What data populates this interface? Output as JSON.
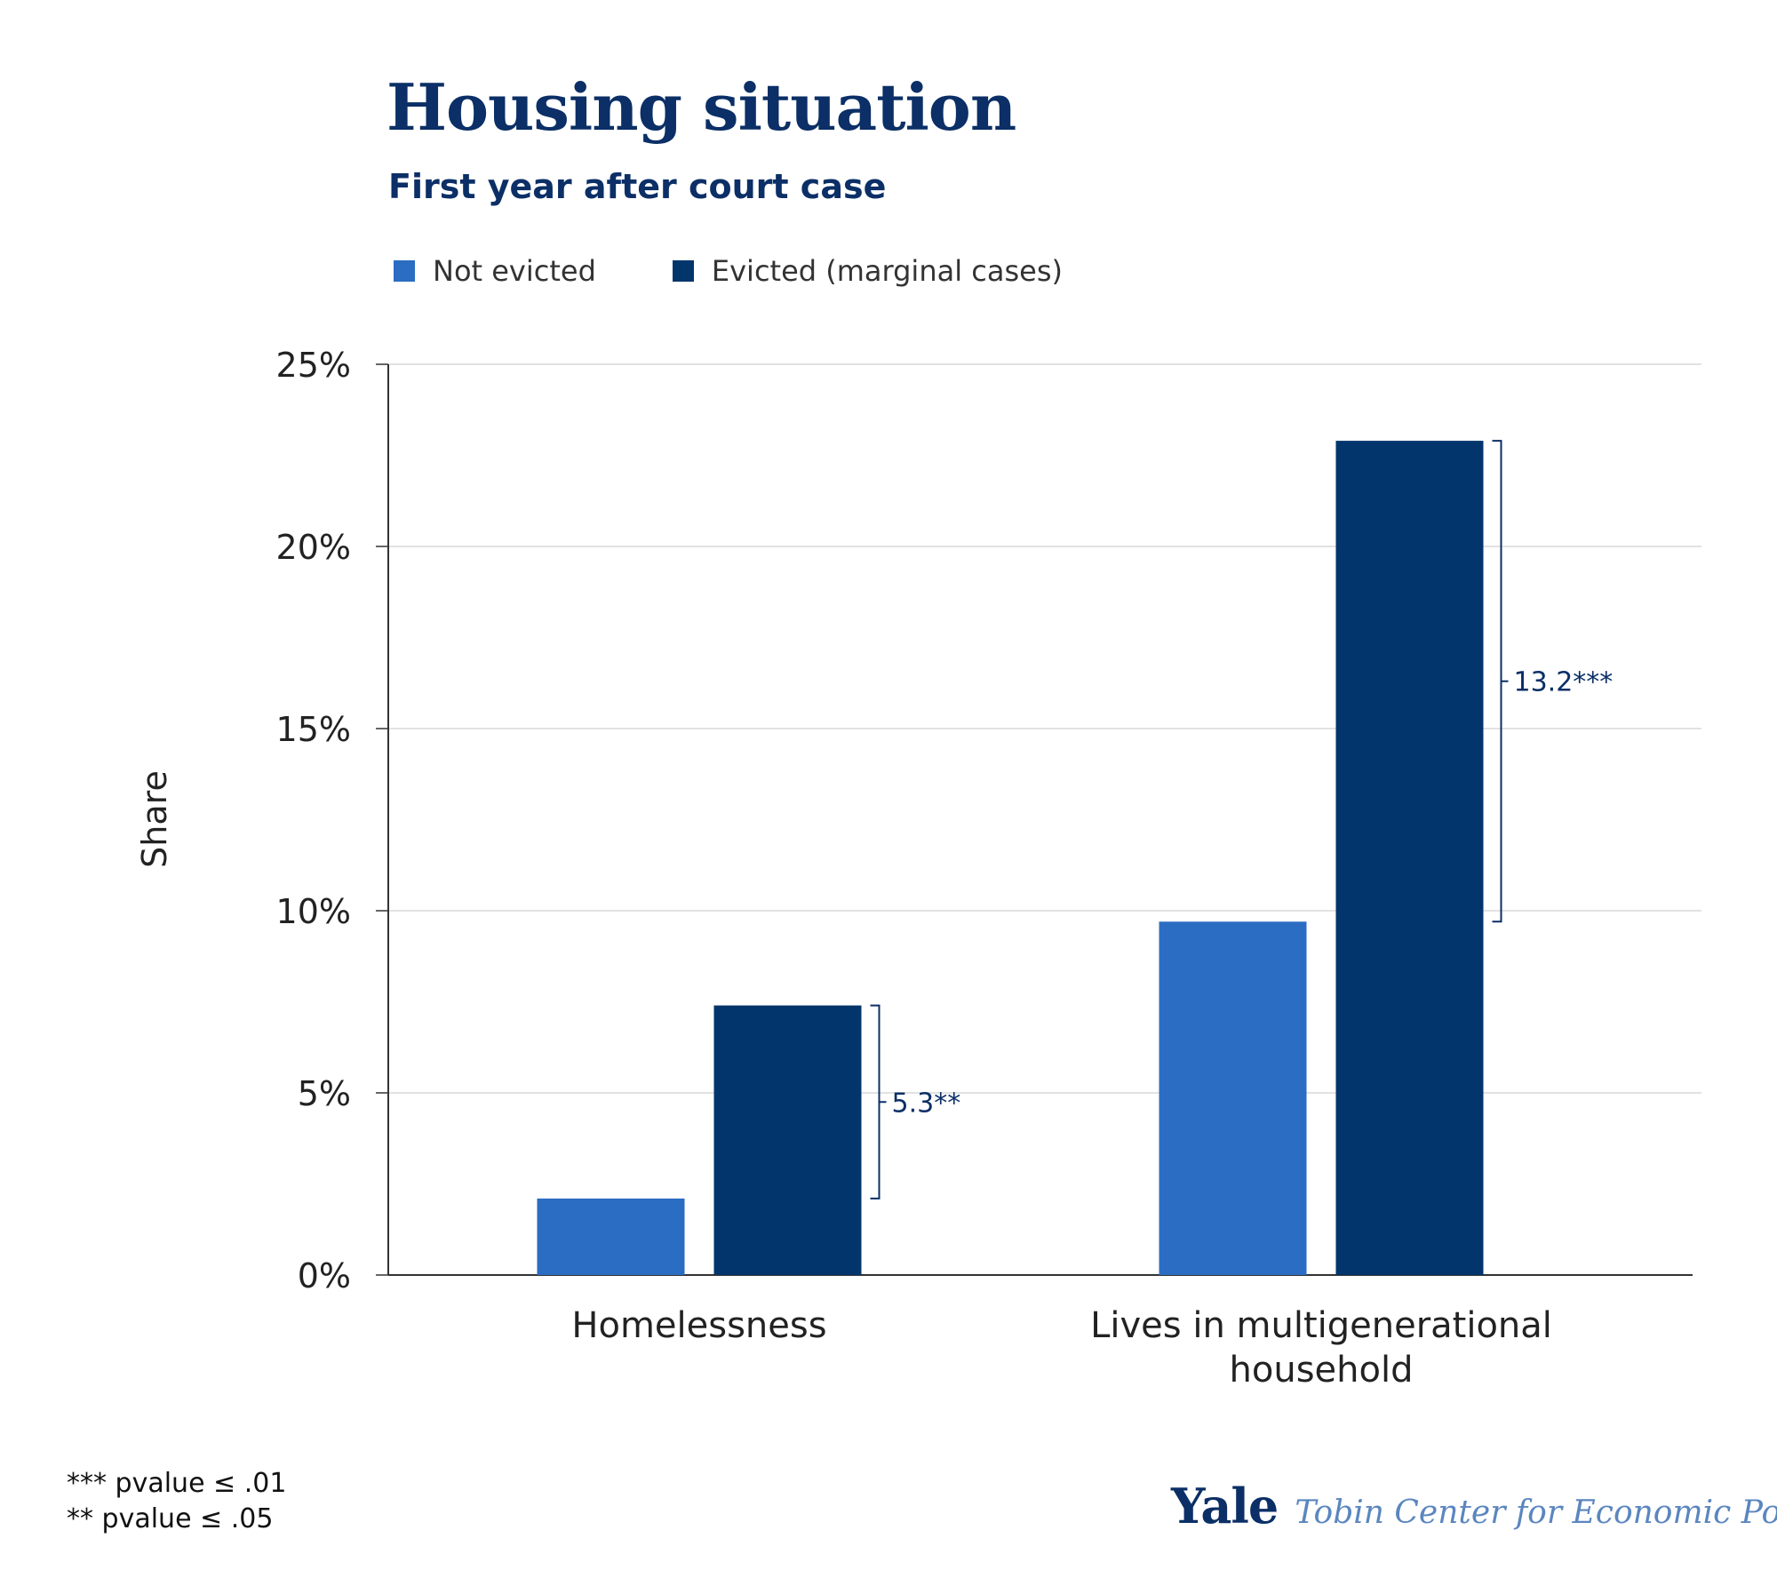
{
  "chart_data": {
    "type": "bar",
    "title": "Housing situation",
    "subtitle": "First year after court case",
    "ylabel": "Share",
    "xlabel": "",
    "ylim": [
      0,
      25
    ],
    "yticks": [
      0,
      5,
      10,
      15,
      20,
      25
    ],
    "ytick_labels": [
      "0%",
      "5%",
      "10%",
      "15%",
      "20%",
      "25%"
    ],
    "grid": true,
    "legend_position": "top-left",
    "categories": [
      [
        "Homelessness"
      ],
      [
        "Lives in multigenerational",
        "household"
      ]
    ],
    "series": [
      {
        "name": "Not evicted",
        "color": "#2b6dc2",
        "values": [
          2.1,
          9.7
        ]
      },
      {
        "name": "Evicted (marginal cases)",
        "color": "#02356b",
        "values": [
          7.4,
          22.9
        ]
      }
    ],
    "annotations": [
      {
        "category_index": 0,
        "from": 2.1,
        "to": 7.4,
        "label": "5.3**"
      },
      {
        "category_index": 1,
        "from": 9.7,
        "to": 22.9,
        "label": "13.2***"
      }
    ]
  },
  "footnotes": [
    "*** pvalue ≤ .01",
    "** pvalue ≤ .05"
  ],
  "branding": {
    "yale": "Yale",
    "tobin": "Tobin Center for Economic Policy"
  },
  "colors": {
    "title": "#0b2f66",
    "accent_light": "#5b86bf",
    "annotation": "#0b2f66"
  }
}
